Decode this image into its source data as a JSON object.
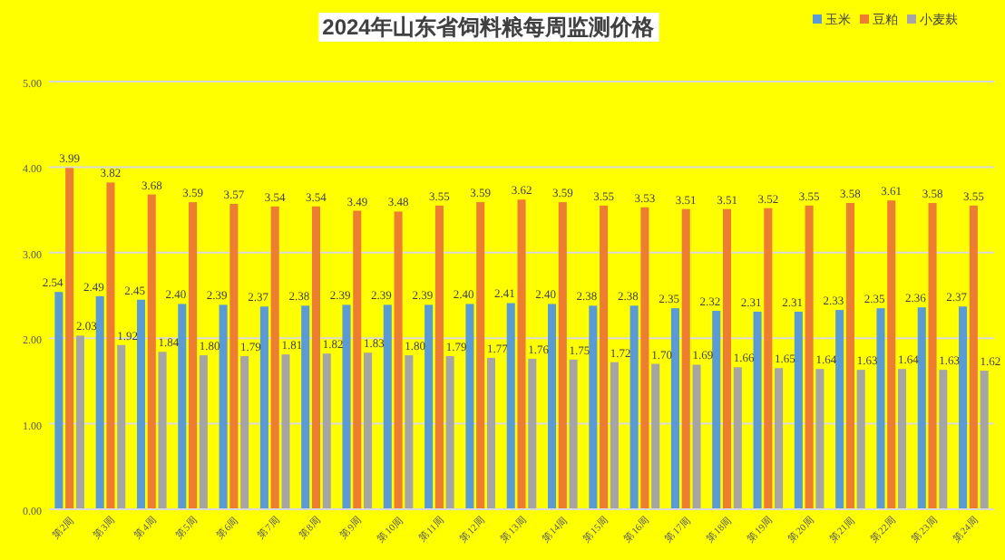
{
  "chart_data": {
    "type": "bar",
    "title": "2024年山东省饲料粮每周监测价格",
    "categories": [
      "第2周",
      "第3周",
      "第4周",
      "第5周",
      "第6周",
      "第7周",
      "第8周",
      "第9周",
      "第10周",
      "第11周",
      "第12周",
      "第13周",
      "第14周",
      "第15周",
      "第16周",
      "第17周",
      "第18周",
      "第19周",
      "第20周",
      "第21周",
      "第22周",
      "第23周",
      "第24周"
    ],
    "series": [
      {
        "name": "玉米",
        "color": "#5b9bd5",
        "values": [
          2.54,
          2.49,
          2.45,
          2.4,
          2.39,
          2.37,
          2.38,
          2.39,
          2.39,
          2.39,
          2.4,
          2.41,
          2.4,
          2.38,
          2.38,
          2.35,
          2.32,
          2.31,
          2.31,
          2.33,
          2.35,
          2.36,
          2.37
        ],
        "value_labels": [
          "2.54",
          "2.49",
          "2.45",
          "2.40",
          "2.39",
          "2.37",
          "2.38",
          "2.39",
          "2.39",
          "2.39",
          "2.40",
          "2.41",
          "2.40",
          "2.38",
          "2.38",
          "2.35",
          "2.32",
          "2.31",
          "2.31",
          "2.33",
          "2.35",
          "2.36",
          "2.37"
        ]
      },
      {
        "name": "豆粕",
        "color": "#ed7d31",
        "values": [
          3.99,
          3.82,
          3.68,
          3.59,
          3.57,
          3.54,
          3.54,
          3.49,
          3.48,
          3.55,
          3.59,
          3.62,
          3.59,
          3.55,
          3.53,
          3.51,
          3.51,
          3.52,
          3.55,
          3.58,
          3.61,
          3.58,
          3.55
        ],
        "value_labels": [
          "3.99",
          "3.82",
          "3.68",
          "3.59",
          "3.57",
          "3.54",
          "3.54",
          "3.49",
          "3.48",
          "3.55",
          "3.59",
          "3.62",
          "3.59",
          "3.55",
          "3.53",
          "3.51",
          "3.51",
          "3.52",
          "3.55",
          "3.58",
          "3.61",
          "3.58",
          "3.55"
        ]
      },
      {
        "name": "小麦麸",
        "color": "#a5a5a5",
        "values": [
          2.03,
          1.92,
          1.84,
          1.8,
          1.79,
          1.81,
          1.82,
          1.83,
          1.8,
          1.79,
          1.77,
          1.76,
          1.75,
          1.72,
          1.7,
          1.69,
          1.66,
          1.65,
          1.64,
          1.63,
          1.64,
          1.63,
          1.62
        ],
        "value_labels": [
          "2.03",
          "1.92",
          "1.84",
          "1.80",
          "1.79",
          "1.81",
          "1.82",
          "1.83",
          "1.80",
          "1.79",
          "1.77",
          "1.76",
          "1.75",
          "1.72",
          "1.70",
          "1.69",
          "1.66",
          "1.65",
          "1.64",
          "1.63",
          "1.64",
          "1.63",
          "1.62"
        ]
      }
    ],
    "ylim": [
      0,
      5
    ],
    "yticks": [
      {
        "value": 0,
        "label": "0.00"
      },
      {
        "value": 1,
        "label": "1.00"
      },
      {
        "value": 2,
        "label": "2.00"
      },
      {
        "value": 3,
        "label": "3.00"
      },
      {
        "value": 4,
        "label": "4.00"
      },
      {
        "value": 5,
        "label": "5.00"
      }
    ],
    "grid": "y",
    "legend": "top right"
  }
}
